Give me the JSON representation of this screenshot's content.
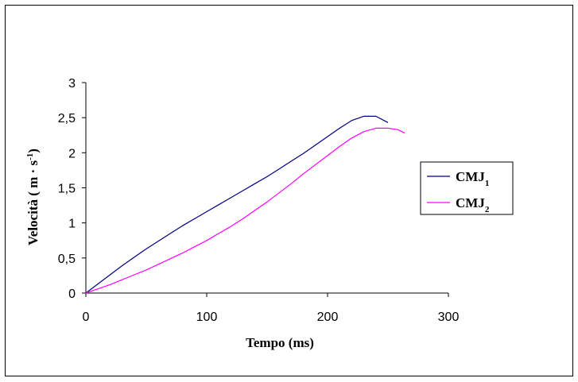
{
  "chart_data": {
    "type": "line",
    "title": "",
    "xlabel": "Tempo (ms)",
    "ylabel": {
      "main": "Velocità ( m · s",
      "sup": "-1",
      "close": ")"
    },
    "xlim": [
      0,
      300
    ],
    "ylim": [
      0,
      3
    ],
    "xticks": [
      0,
      100,
      200,
      300
    ],
    "yticks": [
      "0",
      "0,5",
      "1",
      "1,5",
      "2",
      "2,5",
      "3"
    ],
    "grid": false,
    "legend_position": "right",
    "series": [
      {
        "name": "CMJ",
        "subscript": "1",
        "color": "#000080",
        "x": [
          0,
          10,
          20,
          30,
          40,
          50,
          60,
          70,
          80,
          90,
          100,
          110,
          120,
          130,
          140,
          150,
          160,
          170,
          180,
          190,
          200,
          210,
          220,
          230,
          240,
          250
        ],
        "y": [
          0,
          0.13,
          0.26,
          0.39,
          0.51,
          0.63,
          0.74,
          0.85,
          0.96,
          1.06,
          1.16,
          1.26,
          1.36,
          1.46,
          1.56,
          1.66,
          1.77,
          1.88,
          1.99,
          2.11,
          2.23,
          2.35,
          2.46,
          2.52,
          2.52,
          2.43
        ]
      },
      {
        "name": "CMJ",
        "subscript": "2",
        "color": "#ff00ff",
        "x": [
          0,
          10,
          20,
          30,
          40,
          50,
          60,
          70,
          80,
          90,
          100,
          110,
          120,
          130,
          140,
          150,
          160,
          170,
          180,
          190,
          200,
          210,
          220,
          230,
          240,
          250,
          258,
          264
        ],
        "y": [
          0,
          0.06,
          0.12,
          0.19,
          0.26,
          0.33,
          0.41,
          0.49,
          0.57,
          0.66,
          0.75,
          0.85,
          0.95,
          1.06,
          1.18,
          1.3,
          1.43,
          1.56,
          1.7,
          1.83,
          1.96,
          2.09,
          2.21,
          2.3,
          2.35,
          2.35,
          2.33,
          2.28
        ]
      }
    ]
  }
}
